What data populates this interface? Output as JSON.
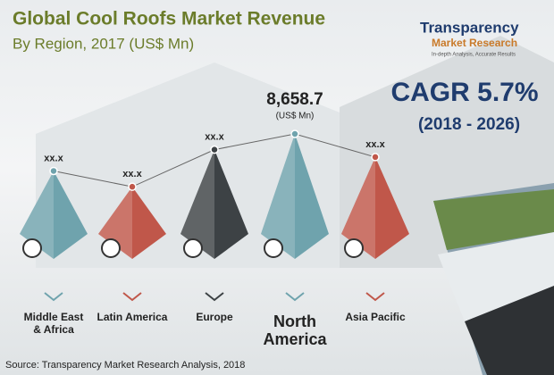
{
  "chart_data": {
    "type": "pyramid",
    "title": "Global Cool Roofs Market Revenue",
    "subtitle": "By Region, 2017 (US$ Mn)",
    "categories": [
      "Middle East & Africa",
      "Latin America",
      "Europe",
      "North America",
      "Asia Pacific"
    ],
    "values": [
      6093,
      5000,
      7568,
      8658.7,
      7055
    ],
    "value_labels": [
      "xx.x",
      "xx.x",
      "xx.x",
      "8,658.7",
      "xx.x"
    ],
    "unit_label": "(US$ Mn)",
    "colors": [
      "#6fa3ad",
      "#c0574a",
      "#3d4245",
      "#6fa3ad",
      "#c0574a"
    ],
    "cagr": "CAGR 5.7%",
    "cagr_period": "(2018 - 2026)",
    "logo": {
      "name": "Transparency",
      "sub": "Market Research",
      "tagline": "In-depth Analysis, Accurate Results"
    },
    "source": "Source: Transparency Market Research Analysis, 2018"
  }
}
